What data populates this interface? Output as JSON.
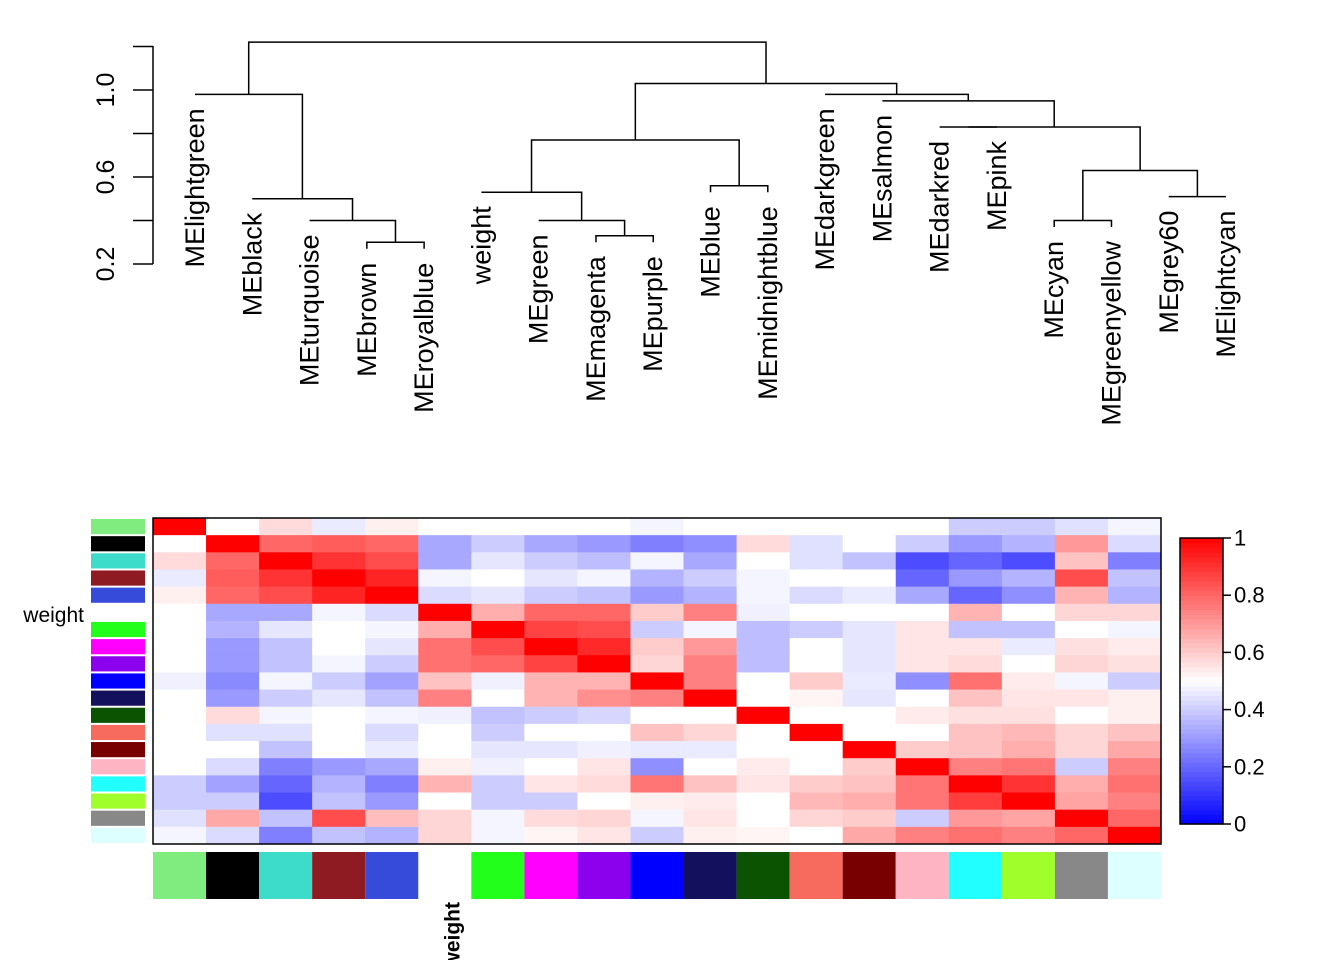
{
  "chart_data": [
    {
      "type": "dendrogram",
      "title": "",
      "ylim": [
        0.2,
        1.2
      ],
      "yticks": [
        0.2,
        0.6,
        1.0
      ],
      "leaves": [
        "MElightgreen",
        "MEblack",
        "MEturquoise",
        "MEbrown",
        "MEroyalblue",
        "weight",
        "MEgreen",
        "MEmagenta",
        "MEpurple",
        "MEblue",
        "MEmidnightblue",
        "MEdarkgreen",
        "MEsalmon",
        "MEdarkred",
        "MEpink",
        "MEcyan",
        "MEgreenyellow",
        "MEgrey60",
        "MElightcyan"
      ],
      "leaf_tops": [
        0.98,
        0.5,
        0.4,
        0.27,
        0.27,
        0.53,
        0.4,
        0.3,
        0.3,
        0.53,
        0.53,
        0.98,
        0.95,
        0.83,
        0.83,
        0.37,
        0.37,
        0.51,
        0.51
      ],
      "merges": [
        {
          "left": 3,
          "right": 4,
          "height": 0.3
        },
        {
          "left": 2,
          "right": -1,
          "height": 0.4
        },
        {
          "left": 1,
          "right": -2,
          "height": 0.5
        },
        {
          "left": 0,
          "right": -3,
          "height": 0.98
        },
        {
          "left": 7,
          "right": 8,
          "height": 0.33
        },
        {
          "left": 6,
          "right": -5,
          "height": 0.4
        },
        {
          "left": 5,
          "right": -6,
          "height": 0.53
        },
        {
          "left": 9,
          "right": 10,
          "height": 0.56
        },
        {
          "left": -7,
          "right": -8,
          "height": 0.77
        },
        {
          "left": 15,
          "right": 16,
          "height": 0.4
        },
        {
          "left": 17,
          "right": 18,
          "height": 0.51
        },
        {
          "left": -10,
          "right": -11,
          "height": 0.63
        },
        {
          "left": 13,
          "right": 14,
          "height": 0.83
        },
        {
          "left": -13,
          "right": -12,
          "height": 0.83
        },
        {
          "left": 12,
          "right": -14,
          "height": 0.95
        },
        {
          "left": 11,
          "right": -15,
          "height": 0.98
        },
        {
          "left": -9,
          "right": -16,
          "height": 1.03
        },
        {
          "left": -4,
          "right": -17,
          "height": 1.22
        }
      ]
    },
    {
      "type": "heatmap",
      "title": "",
      "row_label": "weight",
      "col_label": "weight",
      "module_colors": [
        "#80ec80",
        "#000000",
        "#3ddbc9",
        "#8f1b22",
        "#364bd9",
        "",
        "#22ff1a",
        "#ff00ff",
        "#8b00ed",
        "#0000ff",
        "#13105d",
        "#0b5201",
        "#f76b5e",
        "#790000",
        "#ffb4c4",
        "#22ffff",
        "#a0ff2b",
        "#888888",
        "#ddffff"
      ],
      "row_colors": [
        "#80ec80",
        "#000000",
        "#3ddbc9",
        "#8f1b22",
        "#364bd9",
        "",
        "#22ff1a",
        "#ff00ff",
        "#8b00ed",
        "#0000ff",
        "#13105d",
        "#0b5201",
        "#f76b5e",
        "#790000",
        "#ffb4c4",
        "#22ffff",
        "#a0ff2b",
        "#888888",
        "#ddffff"
      ],
      "zlim": [
        0,
        1
      ],
      "colorbar_ticks": [
        "0",
        "0.2",
        "0.4",
        "0.6",
        "0.8",
        "1"
      ],
      "values": [
        [
          1.0,
          0.5,
          0.57,
          0.46,
          0.53,
          0.5,
          0.5,
          0.5,
          0.5,
          0.48,
          0.5,
          0.5,
          0.5,
          0.5,
          0.5,
          0.4,
          0.4,
          0.44,
          0.48
        ],
        [
          0.5,
          1.0,
          0.8,
          0.82,
          0.8,
          0.33,
          0.4,
          0.33,
          0.3,
          0.25,
          0.28,
          0.57,
          0.44,
          0.5,
          0.4,
          0.3,
          0.35,
          0.7,
          0.43
        ],
        [
          0.57,
          0.8,
          1.0,
          0.9,
          0.85,
          0.33,
          0.45,
          0.4,
          0.37,
          0.48,
          0.33,
          0.5,
          0.44,
          0.38,
          0.15,
          0.2,
          0.15,
          0.62,
          0.25
        ],
        [
          0.46,
          0.82,
          0.9,
          1.0,
          0.93,
          0.48,
          0.5,
          0.45,
          0.48,
          0.35,
          0.4,
          0.48,
          0.5,
          0.5,
          0.2,
          0.3,
          0.35,
          0.85,
          0.38
        ],
        [
          0.53,
          0.8,
          0.85,
          0.93,
          1.0,
          0.43,
          0.45,
          0.4,
          0.38,
          0.3,
          0.35,
          0.48,
          0.43,
          0.46,
          0.33,
          0.2,
          0.28,
          0.65,
          0.35
        ],
        [
          0.5,
          0.33,
          0.33,
          0.48,
          0.43,
          1.0,
          0.66,
          0.8,
          0.8,
          0.6,
          0.75,
          0.47,
          0.5,
          0.5,
          0.5,
          0.65,
          0.5,
          0.58,
          0.58
        ],
        [
          0.5,
          0.35,
          0.45,
          0.5,
          0.48,
          0.66,
          1.0,
          0.87,
          0.85,
          0.4,
          0.48,
          0.37,
          0.4,
          0.45,
          0.55,
          0.38,
          0.38,
          0.5,
          0.48
        ],
        [
          0.5,
          0.3,
          0.38,
          0.5,
          0.45,
          0.78,
          0.85,
          1.0,
          0.92,
          0.6,
          0.7,
          0.37,
          0.5,
          0.45,
          0.55,
          0.55,
          0.46,
          0.56,
          0.54
        ],
        [
          0.5,
          0.3,
          0.38,
          0.48,
          0.4,
          0.78,
          0.8,
          0.87,
          1.0,
          0.58,
          0.75,
          0.37,
          0.5,
          0.45,
          0.55,
          0.57,
          0.5,
          0.58,
          0.56
        ],
        [
          0.47,
          0.27,
          0.48,
          0.4,
          0.32,
          0.62,
          0.47,
          0.65,
          0.65,
          1.0,
          0.75,
          0.5,
          0.6,
          0.46,
          0.28,
          0.78,
          0.54,
          0.48,
          0.4
        ],
        [
          0.5,
          0.3,
          0.4,
          0.45,
          0.38,
          0.75,
          0.5,
          0.65,
          0.72,
          0.75,
          1.0,
          0.5,
          0.52,
          0.45,
          0.5,
          0.62,
          0.55,
          0.55,
          0.53
        ],
        [
          0.5,
          0.57,
          0.48,
          0.5,
          0.48,
          0.47,
          0.38,
          0.4,
          0.42,
          0.5,
          0.5,
          1.0,
          0.5,
          0.5,
          0.54,
          0.56,
          0.56,
          0.5,
          0.53
        ],
        [
          0.5,
          0.44,
          0.44,
          0.5,
          0.43,
          0.5,
          0.4,
          0.5,
          0.5,
          0.62,
          0.58,
          0.5,
          1.0,
          0.5,
          0.5,
          0.62,
          0.64,
          0.58,
          0.62
        ],
        [
          0.5,
          0.5,
          0.38,
          0.5,
          0.46,
          0.5,
          0.45,
          0.45,
          0.47,
          0.46,
          0.46,
          0.5,
          0.5,
          1.0,
          0.6,
          0.62,
          0.66,
          0.58,
          0.67
        ],
        [
          0.5,
          0.43,
          0.25,
          0.3,
          0.33,
          0.53,
          0.47,
          0.5,
          0.55,
          0.28,
          0.5,
          0.54,
          0.5,
          0.6,
          1.0,
          0.75,
          0.77,
          0.4,
          0.75
        ],
        [
          0.4,
          0.32,
          0.2,
          0.35,
          0.25,
          0.65,
          0.4,
          0.55,
          0.57,
          0.77,
          0.62,
          0.55,
          0.6,
          0.62,
          0.77,
          1.0,
          0.9,
          0.66,
          0.78
        ],
        [
          0.4,
          0.4,
          0.15,
          0.38,
          0.3,
          0.5,
          0.4,
          0.4,
          0.5,
          0.53,
          0.54,
          0.5,
          0.64,
          0.66,
          0.77,
          0.88,
          1.0,
          0.68,
          0.75
        ],
        [
          0.44,
          0.67,
          0.38,
          0.85,
          0.63,
          0.58,
          0.48,
          0.57,
          0.58,
          0.48,
          0.55,
          0.5,
          0.58,
          0.6,
          0.4,
          0.7,
          0.68,
          1.0,
          0.8
        ],
        [
          0.48,
          0.43,
          0.25,
          0.38,
          0.35,
          0.58,
          0.48,
          0.52,
          0.55,
          0.4,
          0.53,
          0.52,
          0.5,
          0.67,
          0.75,
          0.78,
          0.75,
          0.8,
          1.0
        ]
      ]
    }
  ]
}
